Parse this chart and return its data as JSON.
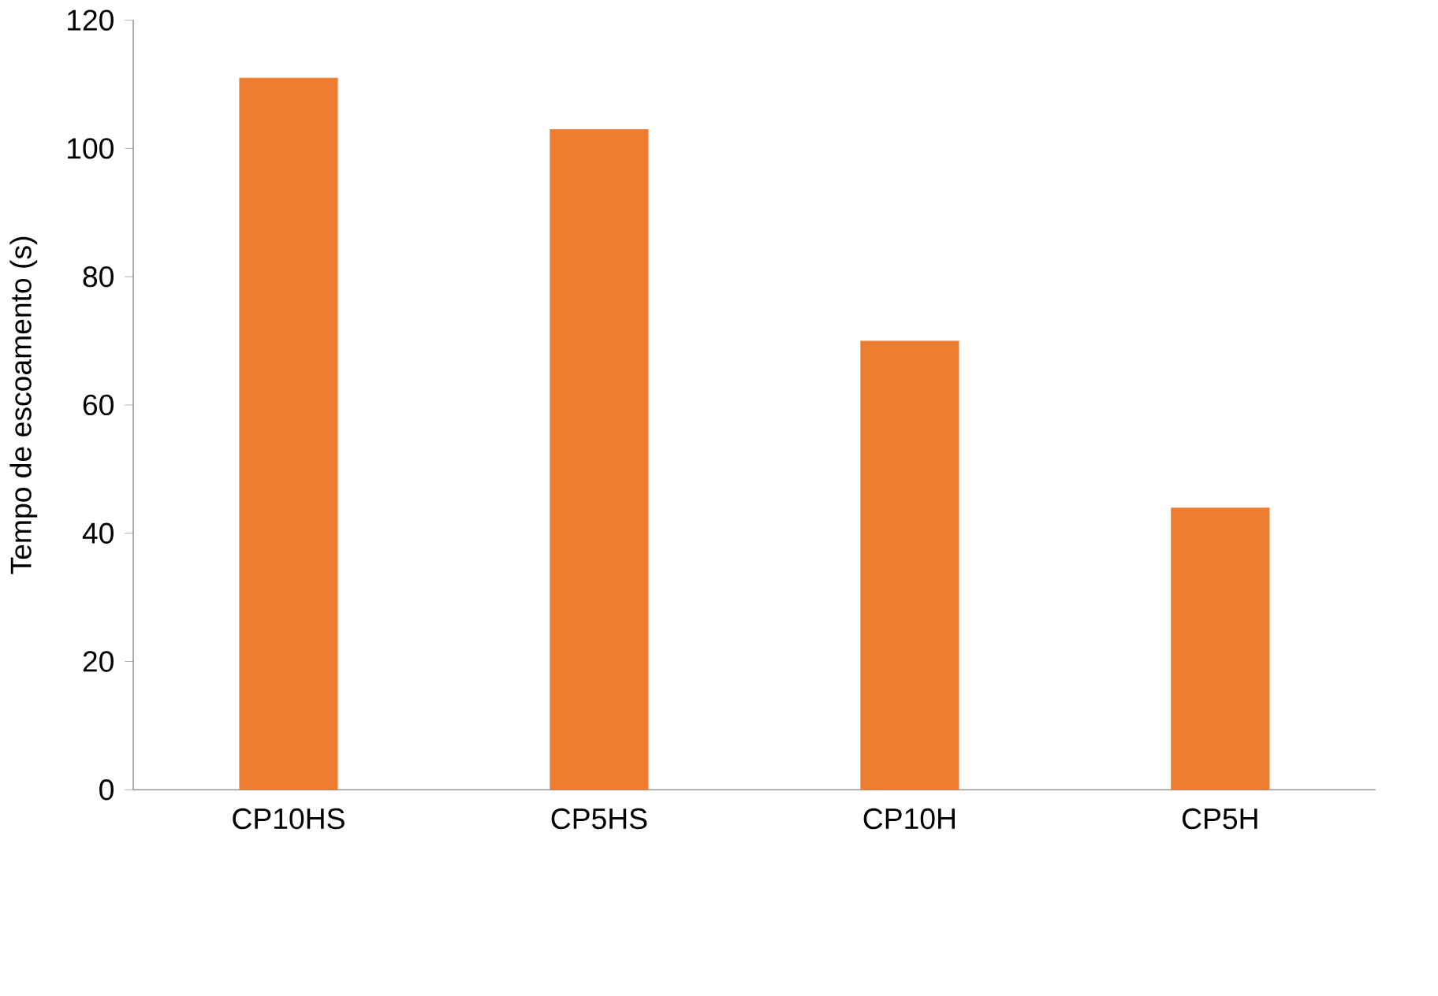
{
  "chart_data": {
    "type": "bar",
    "ylabel": "Tempo de escoamento (s)",
    "categories": [
      "CP10HS",
      "CP5HS",
      "CP10H",
      "CP5H"
    ],
    "values": [
      111,
      103,
      70,
      44
    ],
    "color": "#ed7d31",
    "ylim": [
      0,
      120
    ],
    "yticks": [
      0,
      20,
      40,
      60,
      80,
      100,
      120
    ]
  }
}
